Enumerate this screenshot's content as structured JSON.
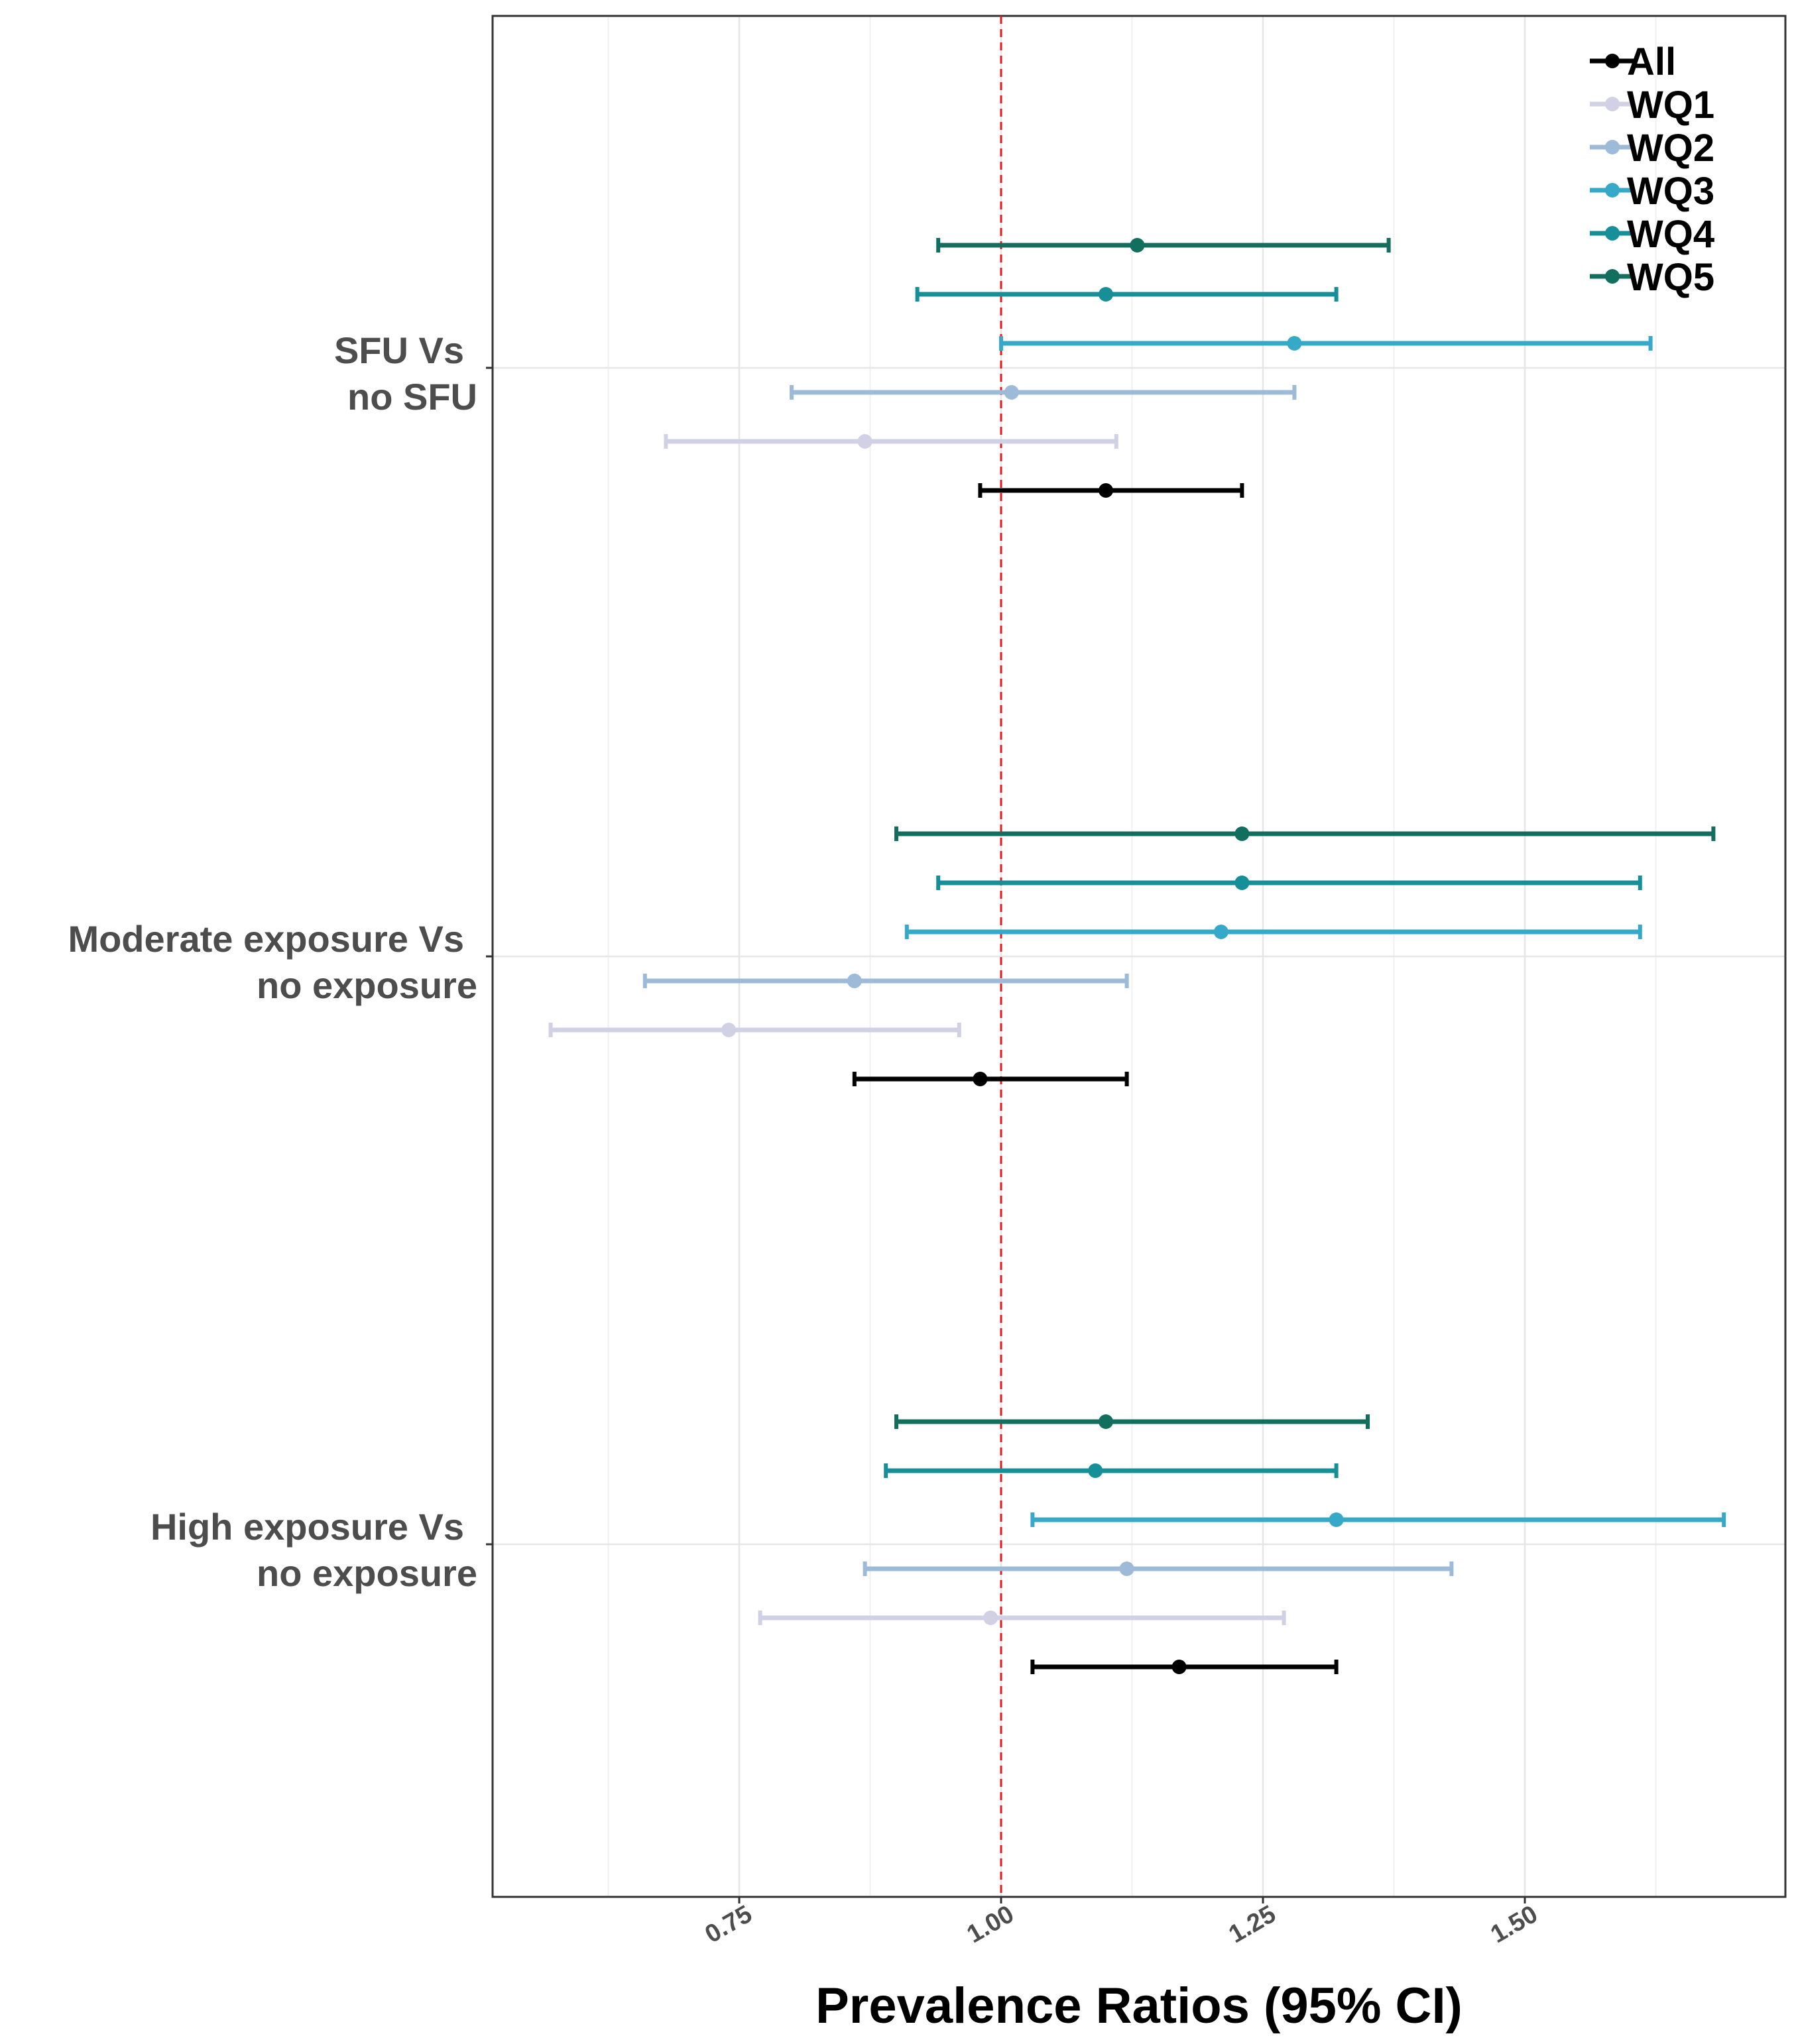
{
  "chart_data": {
    "type": "forest",
    "xlabel": "Prevalence Ratios (95% CI)",
    "xlim": [
      0.5,
      1.75
    ],
    "xticks": [
      0.75,
      1.0,
      1.25,
      1.5
    ],
    "xtick_labels": [
      "0.75",
      "1.00",
      "1.25",
      "1.50"
    ],
    "reference_line": 1.0,
    "reference_color": "#e41a1c",
    "groups": [
      {
        "label_line1": "SFU Vs",
        "label_line2": "no SFU"
      },
      {
        "label_line1": "Moderate exposure Vs",
        "label_line2": "no exposure"
      },
      {
        "label_line1": "High exposure Vs",
        "label_line2": "no exposure"
      }
    ],
    "series": [
      {
        "name": "All",
        "color": "#000000",
        "points": [
          {
            "est": 1.1,
            "lo": 0.98,
            "hi": 1.23
          },
          {
            "est": 0.98,
            "lo": 0.86,
            "hi": 1.12
          },
          {
            "est": 1.17,
            "lo": 1.03,
            "hi": 1.32
          }
        ]
      },
      {
        "name": "WQ1",
        "color": "#d1d1e6",
        "points": [
          {
            "est": 0.87,
            "lo": 0.68,
            "hi": 1.11
          },
          {
            "est": 0.74,
            "lo": 0.57,
            "hi": 0.96
          },
          {
            "est": 0.99,
            "lo": 0.77,
            "hi": 1.27
          }
        ]
      },
      {
        "name": "WQ2",
        "color": "#9dbad8",
        "points": [
          {
            "est": 1.01,
            "lo": 0.8,
            "hi": 1.28
          },
          {
            "est": 0.86,
            "lo": 0.66,
            "hi": 1.12
          },
          {
            "est": 1.12,
            "lo": 0.87,
            "hi": 1.43
          }
        ]
      },
      {
        "name": "WQ3",
        "color": "#36a9c9",
        "points": [
          {
            "est": 1.28,
            "lo": 1.0,
            "hi": 1.62
          },
          {
            "est": 1.21,
            "lo": 0.91,
            "hi": 1.61
          },
          {
            "est": 1.32,
            "lo": 1.03,
            "hi": 1.69
          }
        ]
      },
      {
        "name": "WQ4",
        "color": "#168f98",
        "points": [
          {
            "est": 1.1,
            "lo": 0.92,
            "hi": 1.32
          },
          {
            "est": 1.23,
            "lo": 0.94,
            "hi": 1.61
          },
          {
            "est": 1.09,
            "lo": 0.89,
            "hi": 1.32
          }
        ]
      },
      {
        "name": "WQ5",
        "color": "#126e5d",
        "points": [
          {
            "est": 1.13,
            "lo": 0.94,
            "hi": 1.37
          },
          {
            "est": 1.23,
            "lo": 0.9,
            "hi": 1.68
          },
          {
            "est": 1.1,
            "lo": 0.9,
            "hi": 1.35
          }
        ]
      }
    ],
    "legend_position": "top-right"
  }
}
